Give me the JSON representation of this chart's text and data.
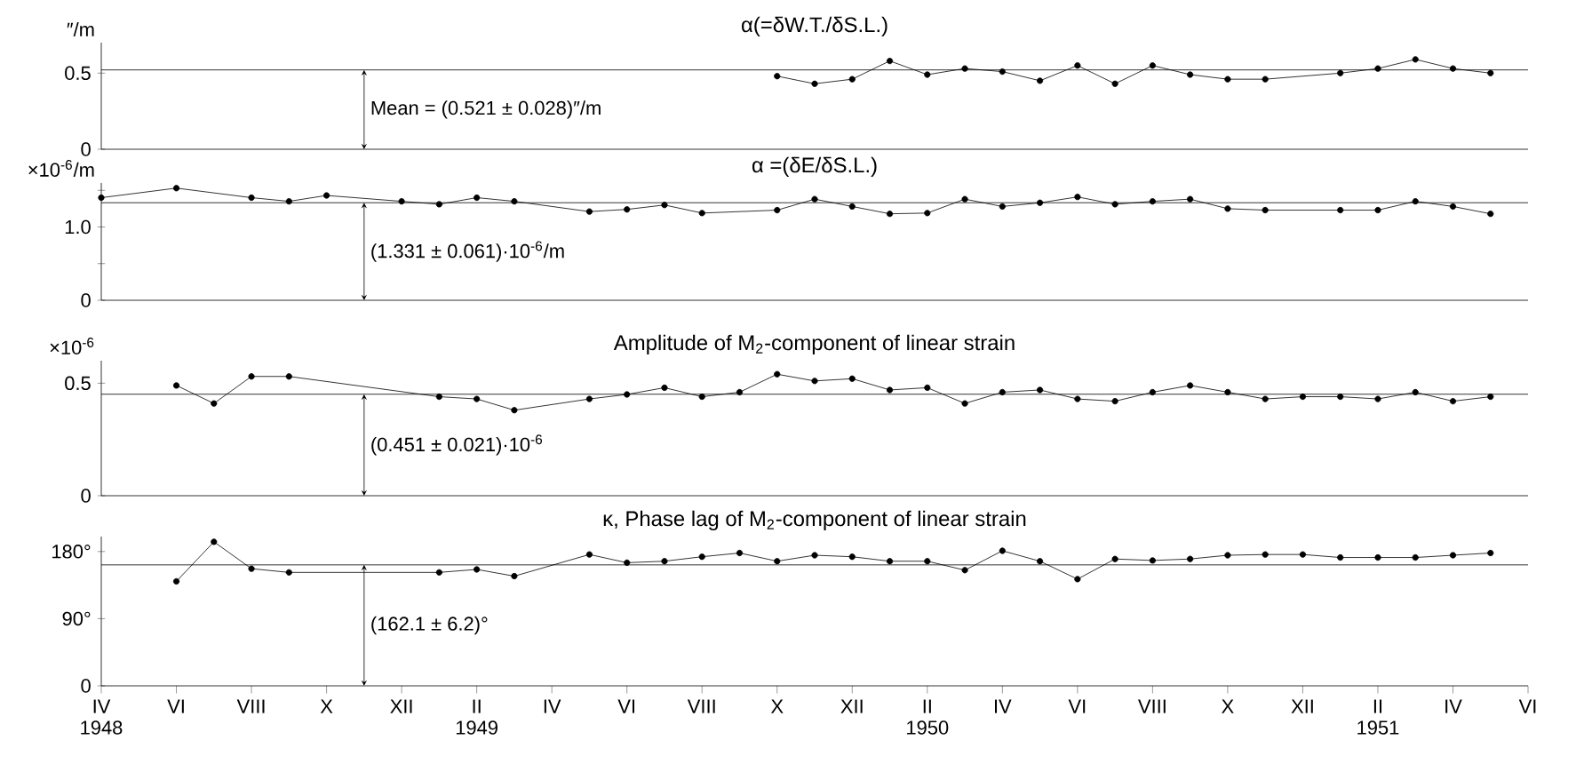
{
  "chart_data": [
    {
      "type": "line",
      "title": "α(=δW.T./δS.L.)",
      "ylabel": "″/m",
      "color": "#000000",
      "marker": "circle",
      "line_style": "solid",
      "tick_labels": "y",
      "xlim": [
        "1948-04",
        "1951-06"
      ],
      "ylim": [
        0,
        0.7
      ],
      "yticks": [
        0,
        0.5
      ],
      "x": [
        "1949-10",
        "1949-11",
        "1949-12",
        "1950-01",
        "1950-02",
        "1950-03",
        "1950-04",
        "1950-05",
        "1950-06",
        "1950-07",
        "1950-08",
        "1950-09",
        "1950-10",
        "1950-11",
        "1951-01",
        "1951-02",
        "1951-03",
        "1951-04",
        "1951-05"
      ],
      "values": [
        0.48,
        0.43,
        0.46,
        0.58,
        0.49,
        0.53,
        0.51,
        0.45,
        0.55,
        0.43,
        0.55,
        0.49,
        0.46,
        0.46,
        0.5,
        0.53,
        0.59,
        0.53,
        0.5
      ],
      "ref_lines": [
        {
          "axis": "y",
          "value": 0.521
        }
      ],
      "annotations": [
        {
          "text": "Mean = (0.521 ± 0.028)″/m",
          "x": "1948-11",
          "y": 0.521
        }
      ]
    },
    {
      "type": "line",
      "title": "α =(δE/δS.L.)",
      "ylabel": "×10$^{-6}$/m",
      "color": "#000000",
      "marker": "circle",
      "line_style": "solid",
      "tick_labels": "y",
      "xlim": [
        "1948-04",
        "1951-06"
      ],
      "ylim": [
        0,
        1.6
      ],
      "yticks": [
        0,
        {
          "value": 0.5,
          "label": null
        },
        {
          "value": 1.0,
          "label": "1.0"
        },
        {
          "value": 1.5,
          "label": null
        }
      ],
      "x": [
        "1948-04",
        "1948-06",
        "1948-08",
        "1948-09",
        "1948-10",
        "1948-12",
        "1949-01",
        "1949-02",
        "1949-03",
        "1949-05",
        "1949-06",
        "1949-07",
        "1949-08",
        "1949-10",
        "1949-11",
        "1949-12",
        "1950-01",
        "1950-02",
        "1950-03",
        "1950-04",
        "1950-05",
        "1950-06",
        "1950-07",
        "1950-08",
        "1950-09",
        "1950-10",
        "1950-11",
        "1951-01",
        "1951-02",
        "1951-03",
        "1951-04",
        "1951-05"
      ],
      "values": [
        1.4,
        1.53,
        1.4,
        1.35,
        1.43,
        1.35,
        1.31,
        1.4,
        1.35,
        1.21,
        1.24,
        1.3,
        1.19,
        1.23,
        1.38,
        1.28,
        1.18,
        1.19,
        1.38,
        1.28,
        1.33,
        1.41,
        1.31,
        1.35,
        1.38,
        1.25,
        1.23,
        1.23,
        1.23,
        1.35,
        1.28,
        1.18
      ],
      "ref_lines": [
        {
          "axis": "y",
          "value": 1.331
        }
      ],
      "annotations": [
        {
          "text": "(1.331 ± 0.061)·10$^{-6}$/m",
          "x": "1948-11",
          "y": 1.331
        }
      ]
    },
    {
      "type": "line",
      "title": "Amplitude of M$_{2}$-component of linear strain",
      "ylabel": "×10$^{-6}$",
      "color": "#000000",
      "marker": "circle",
      "line_style": "solid",
      "tick_labels": "y",
      "xlim": [
        "1948-04",
        "1951-06"
      ],
      "ylim": [
        0,
        0.6
      ],
      "yticks": [
        0,
        0.5
      ],
      "x": [
        "1948-06",
        "1948-07",
        "1948-08",
        "1948-09",
        "1949-01",
        "1949-02",
        "1949-03",
        "1949-05",
        "1949-06",
        "1949-07",
        "1949-08",
        "1949-09",
        "1949-10",
        "1949-11",
        "1949-12",
        "1950-01",
        "1950-02",
        "1950-03",
        "1950-04",
        "1950-05",
        "1950-06",
        "1950-07",
        "1950-08",
        "1950-09",
        "1950-10",
        "1950-11",
        "1950-12",
        "1951-01",
        "1951-02",
        "1951-03",
        "1951-04",
        "1951-05"
      ],
      "values": [
        0.49,
        0.41,
        0.53,
        0.53,
        0.44,
        0.43,
        0.38,
        0.43,
        0.45,
        0.48,
        0.44,
        0.46,
        0.54,
        0.51,
        0.52,
        0.47,
        0.48,
        0.41,
        0.46,
        0.47,
        0.43,
        0.42,
        0.46,
        0.49,
        0.46,
        0.43,
        0.44,
        0.44,
        0.43,
        0.46,
        0.42,
        0.44
      ],
      "ref_lines": [
        {
          "axis": "y",
          "value": 0.451
        }
      ],
      "annotations": [
        {
          "text": "(0.451 ± 0.021)·10$^{-6}$",
          "x": "1948-11",
          "y": 0.451
        }
      ]
    },
    {
      "type": "line",
      "title": "κ, Phase lag of M$_{2}$-component of linear strain",
      "color": "#000000",
      "marker": "circle",
      "line_style": "solid",
      "xlim": [
        "1948-04",
        "1951-06"
      ],
      "ylim": [
        0,
        200
      ],
      "yticks": [
        0,
        {
          "value": 90,
          "label": "90°"
        },
        {
          "value": 180,
          "label": "180°"
        }
      ],
      "xticks": [
        {
          "value": "1948-04",
          "label": "IV 1948"
        },
        {
          "value": "1948-06",
          "label": "VI"
        },
        {
          "value": "1948-08",
          "label": "VIII"
        },
        {
          "value": "1948-10",
          "label": "X"
        },
        {
          "value": "1948-12",
          "label": "XII"
        },
        {
          "value": "1949-02",
          "label": "II 1949"
        },
        {
          "value": "1949-04",
          "label": "IV"
        },
        {
          "value": "1949-06",
          "label": "VI"
        },
        {
          "value": "1949-08",
          "label": "VIII"
        },
        {
          "value": "1949-10",
          "label": "X"
        },
        {
          "value": "1949-12",
          "label": "XII"
        },
        {
          "value": "1950-02",
          "label": "II 1950"
        },
        {
          "value": "1950-04",
          "label": "IV"
        },
        {
          "value": "1950-06",
          "label": "VI"
        },
        {
          "value": "1950-08",
          "label": "VIII"
        },
        {
          "value": "1950-10",
          "label": "X"
        },
        {
          "value": "1950-12",
          "label": "XII"
        },
        {
          "value": "1951-02",
          "label": "II 1951"
        },
        {
          "value": "1951-04",
          "label": "IV"
        },
        {
          "value": "1951-06",
          "label": "VI"
        }
      ],
      "x": [
        "1948-06",
        "1948-07",
        "1948-08",
        "1948-09",
        "1949-01",
        "1949-02",
        "1949-03",
        "1949-05",
        "1949-06",
        "1949-07",
        "1949-08",
        "1949-09",
        "1949-10",
        "1949-11",
        "1949-12",
        "1950-01",
        "1950-02",
        "1950-03",
        "1950-04",
        "1950-05",
        "1950-06",
        "1950-07",
        "1950-08",
        "1950-09",
        "1950-10",
        "1950-11",
        "1950-12",
        "1951-01",
        "1951-02",
        "1951-03",
        "1951-04",
        "1951-05"
      ],
      "values": [
        140,
        193,
        157,
        152,
        152,
        156,
        147,
        176,
        165,
        167,
        173,
        178,
        167,
        175,
        173,
        167,
        167,
        155,
        181,
        167,
        143,
        170,
        168,
        170,
        175,
        176,
        176,
        172,
        172,
        172,
        175,
        178
      ],
      "ref_lines": [
        {
          "axis": "y",
          "value": 162.1
        }
      ],
      "annotations": [
        {
          "text": "(162.1 ± 6.2)°",
          "x": "1948-11",
          "y": 162.1
        }
      ]
    }
  ]
}
